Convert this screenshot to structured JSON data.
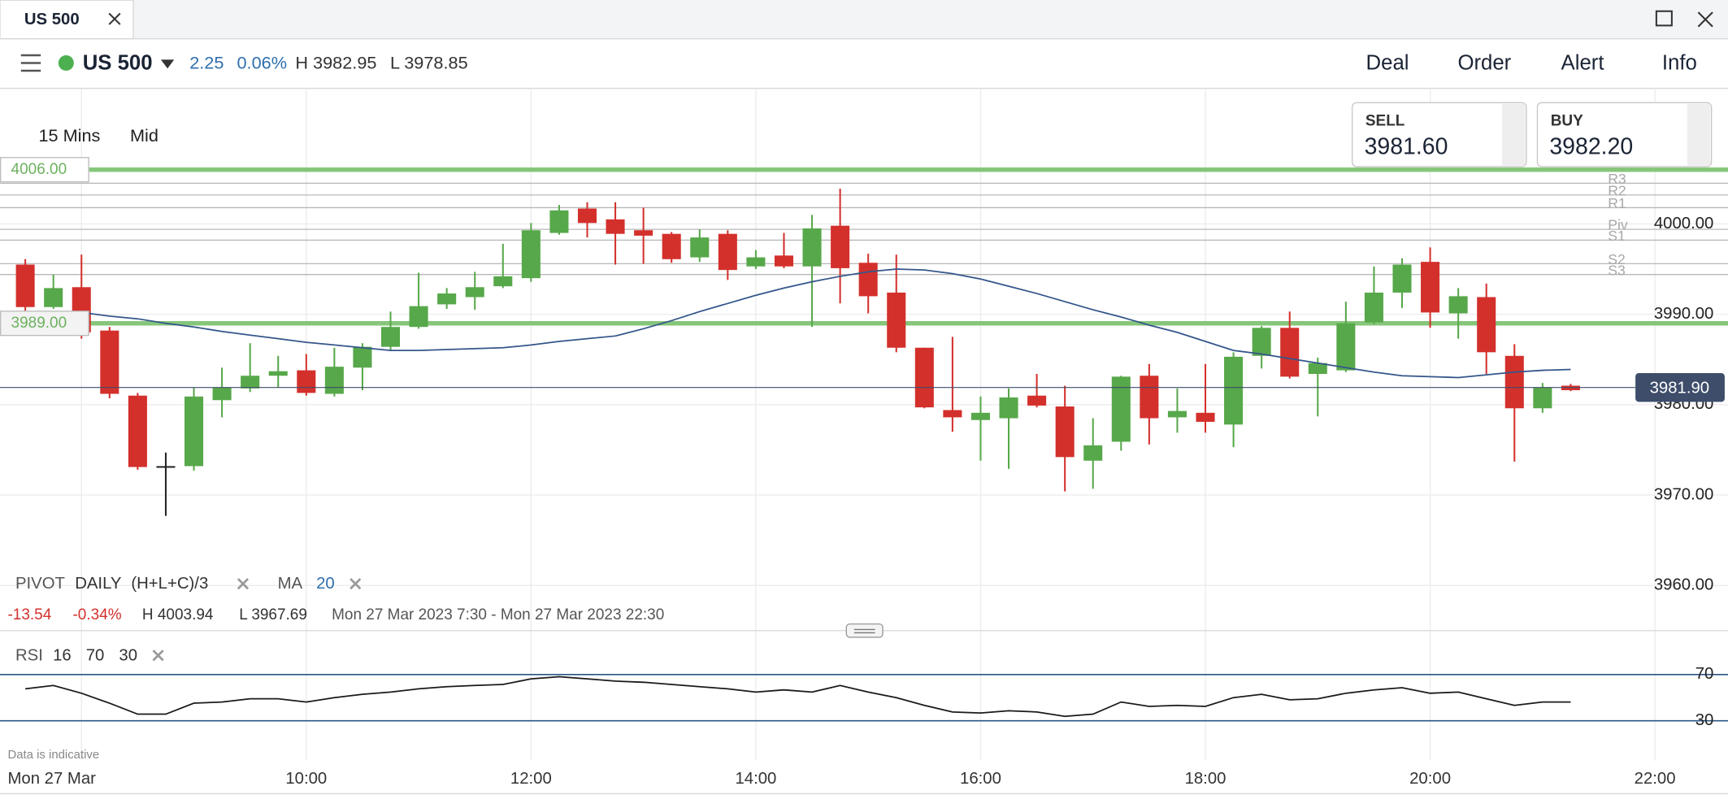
{
  "window": {
    "tab": "US 500"
  },
  "header": {
    "instrument": "US 500",
    "change": "2.25",
    "change_pct": "0.06%",
    "high": "H 3982.95",
    "low": "L 3978.85",
    "menu": [
      "Deal",
      "Order",
      "Alert",
      "Info"
    ]
  },
  "prices": {
    "sell_label": "SELL",
    "sell": "3981.60",
    "buy_label": "BUY",
    "buy": "3982.20"
  },
  "toolbar": {
    "interval": "15 Mins",
    "price_type": "Mid"
  },
  "indicators": {
    "pivot": "PIVOT",
    "pivot_period": "DAILY",
    "pivot_formula": "(H+L+C)/3",
    "ma": "MA",
    "ma_period": "20",
    "rsi": "RSI",
    "rsi_params": [
      "16",
      "70",
      "30"
    ]
  },
  "summary": {
    "change": "-13.54",
    "change_pct": "-0.34%",
    "high": "H 4003.94",
    "low": "L 3967.69",
    "range": "Mon 27 Mar 2023 7:30 - Mon 27 Mar 2023 22:30"
  },
  "footer_note": "Data is indicative",
  "chart_data": [
    {
      "type": "candlestick",
      "x": [
        7.5,
        7.75,
        8,
        8.25,
        8.5,
        8.75,
        9,
        9.25,
        9.5,
        9.75,
        10,
        10.25,
        10.5,
        10.75,
        11,
        11.25,
        11.5,
        11.75,
        12,
        12.25,
        12.5,
        12.75,
        13,
        13.25,
        13.5,
        13.75,
        14,
        14.25,
        14.5,
        14.75,
        15,
        15.25,
        15.5,
        15.75,
        16,
        16.25,
        16.5,
        16.75,
        17,
        17.25,
        17.5,
        17.75,
        18,
        18.25,
        18.5,
        18.75,
        19,
        19.25,
        19.5,
        19.75,
        20,
        20.25,
        20.5,
        20.75,
        21,
        21.25
      ],
      "open": [
        3995.5,
        3990.8,
        3993.0,
        3988.2,
        3981.0,
        3973.2,
        3973.2,
        3980.5,
        3981.8,
        3983.2,
        3983.8,
        3981.2,
        3984.1,
        3986.4,
        3988.6,
        3991.1,
        3991.9,
        3993.1,
        3994.0,
        3999.0,
        4001.7,
        4000.5,
        3999.3,
        3998.9,
        3996.3,
        3998.9,
        3995.3,
        3996.5,
        3995.3,
        3999.8,
        3995.7,
        3992.4,
        3986.3,
        3979.4,
        3978.3,
        3978.5,
        3981.0,
        3979.8,
        3973.8,
        3975.9,
        3983.2,
        3978.6,
        3979.1,
        3977.8,
        3985.4,
        3988.5,
        3983.4,
        3983.8,
        3989.1,
        3992.4,
        3995.8,
        3990.1,
        3991.9,
        3985.4,
        3979.6,
        3982.1
      ],
      "high": [
        3996.1,
        3994.4,
        3996.6,
        3988.6,
        3981.3,
        3974.7,
        3981.9,
        3984.1,
        3986.8,
        3985.4,
        3985.6,
        3986.3,
        3986.8,
        3990.3,
        3994.6,
        3992.9,
        3994.7,
        3997.8,
        4000.1,
        4002.1,
        4002.4,
        4002.4,
        4001.8,
        3999.1,
        3999.4,
        3999.3,
        3997.1,
        3999.0,
        4001.0,
        4003.9,
        3996.7,
        3996.6,
        3986.3,
        3987.5,
        3980.9,
        3981.8,
        3983.4,
        3982.1,
        3978.5,
        3983.2,
        3984.5,
        3981.8,
        3984.5,
        3985.8,
        3988.7,
        3990.3,
        3985.2,
        3991.4,
        3995.3,
        3996.2,
        3997.4,
        3992.9,
        3993.4,
        3986.7,
        3982.4,
        3982.3
      ],
      "low": [
        3990.1,
        3990.6,
        3987.3,
        3980.7,
        3972.8,
        3967.7,
        3972.7,
        3978.6,
        3981.4,
        3981.9,
        3981.0,
        3980.9,
        3981.6,
        3986.0,
        3988.4,
        3990.6,
        3990.5,
        3992.9,
        3993.6,
        3998.8,
        3998.5,
        3995.5,
        3995.6,
        3995.7,
        3995.8,
        3993.8,
        3995.0,
        3995.1,
        3988.6,
        3991.2,
        3990.1,
        3985.8,
        3979.6,
        3977.0,
        3973.8,
        3972.9,
        3979.7,
        3970.4,
        3970.7,
        3974.9,
        3975.6,
        3976.9,
        3976.9,
        3975.3,
        3984.0,
        3982.9,
        3978.7,
        3983.6,
        3988.9,
        3990.7,
        3988.5,
        3987.3,
        3983.4,
        3973.7,
        3979.1,
        3981.5
      ],
      "close": [
        3990.8,
        3992.9,
        3988.0,
        3981.2,
        3973.1,
        3973.2,
        3980.9,
        3981.9,
        3983.2,
        3983.7,
        3981.3,
        3984.2,
        3986.4,
        3988.6,
        3990.9,
        3992.3,
        3993.0,
        3994.2,
        3999.3,
        4001.5,
        4000.1,
        3998.9,
        3998.7,
        3996.1,
        3998.5,
        3994.9,
        3996.3,
        3995.3,
        3999.5,
        3995.1,
        3992.0,
        3986.3,
        3979.7,
        3978.6,
        3979.1,
        3980.8,
        3979.9,
        3974.2,
        3975.5,
        3983.1,
        3978.5,
        3979.3,
        3978.1,
        3985.3,
        3988.5,
        3983.1,
        3984.6,
        3989.0,
        3992.4,
        3995.5,
        3990.2,
        3992.0,
        3985.8,
        3979.6,
        3981.9,
        3981.6
      ],
      "up_color": "#57a84a",
      "down_color": "#d3302c",
      "neutral_color": "#222222",
      "overlay": {
        "color": "#34568b",
        "values": [
          null,
          null,
          3990.2,
          3989.8,
          3989.5,
          3989.0,
          3988.6,
          3988.1,
          3987.7,
          3987.3,
          3986.9,
          3986.6,
          3986.3,
          3986.0,
          3986.0,
          3986.1,
          3986.2,
          3986.3,
          3986.6,
          3987.0,
          3987.3,
          3987.6,
          3988.4,
          3989.3,
          3990.3,
          3991.2,
          3992.1,
          3992.9,
          3993.6,
          3994.2,
          3994.7,
          3995.0,
          3994.9,
          3994.5,
          3993.9,
          3993.1,
          3992.3,
          3991.4,
          3990.5,
          3989.7,
          3988.8,
          3988.0,
          3987.0,
          3986.0,
          3985.6,
          3985.1,
          3984.6,
          3984.1,
          3983.6,
          3983.2,
          3983.1,
          3983.0,
          3983.3,
          3983.6,
          3983.8,
          3983.9
        ]
      },
      "pivots": [
        {
          "value": 4004.5,
          "label": "R3"
        },
        {
          "value": 4003.2,
          "label": "R2"
        },
        {
          "value": 4001.8,
          "label": "R1"
        },
        {
          "value": 3999.4,
          "label": "Piv"
        },
        {
          "value": 3998.2,
          "label": "S1"
        },
        {
          "value": 3995.6,
          "label": "S2"
        },
        {
          "value": 3994.4,
          "label": "S3"
        }
      ],
      "pivot_color": "#b8b8b8",
      "levels": [
        {
          "value": 4006,
          "label": "4006.00"
        },
        {
          "value": 3989,
          "label": "3989.00"
        }
      ],
      "level_color": "#86c67a",
      "current": {
        "value": 3981.9,
        "label": "3981.90",
        "color": "#3d4d6a"
      },
      "xlim": [
        7.275,
        22.65
      ],
      "xticks": [
        {
          "value": 8,
          "label": "Mon 27 Mar"
        },
        {
          "value": 10,
          "label": "10:00"
        },
        {
          "value": 12,
          "label": "12:00"
        },
        {
          "value": 14,
          "label": "14:00"
        },
        {
          "value": 16,
          "label": "16:00"
        },
        {
          "value": 18,
          "label": "18:00"
        },
        {
          "value": 20,
          "label": "20:00"
        },
        {
          "value": 22,
          "label": "22:00"
        }
      ],
      "ylim": [
        3955,
        4015
      ],
      "yticks": [
        {
          "value": 3960,
          "label": "3960.00"
        },
        {
          "value": 3970,
          "label": "3970.00"
        },
        {
          "value": 3980,
          "label": "3980.00"
        },
        {
          "value": 3990,
          "label": "3990.00"
        },
        {
          "value": 4000,
          "label": "4000.00"
        }
      ],
      "grid": true
    },
    {
      "type": "line",
      "x": [
        7.5,
        7.75,
        8,
        8.25,
        8.5,
        8.75,
        9,
        9.25,
        9.5,
        9.75,
        10,
        10.25,
        10.5,
        10.75,
        11,
        11.25,
        11.5,
        11.75,
        12,
        12.25,
        12.5,
        12.75,
        13,
        13.25,
        13.5,
        13.75,
        14,
        14.25,
        14.5,
        14.75,
        15,
        15.25,
        15.5,
        15.75,
        16,
        16.25,
        16.5,
        16.75,
        17,
        17.25,
        17.5,
        17.75,
        18,
        18.25,
        18.5,
        18.75,
        19,
        19.25,
        19.5,
        19.75,
        20,
        20.25,
        20.5,
        20.75,
        21,
        21.25
      ],
      "values": [
        57.6,
        60.5,
        53.8,
        45.2,
        35.7,
        35.7,
        45.2,
        46.2,
        49.0,
        49.0,
        46.2,
        50.0,
        52.9,
        54.8,
        57.6,
        59.5,
        60.5,
        61.4,
        66.2,
        68.1,
        66.2,
        64.3,
        63.3,
        61.4,
        59.5,
        57.6,
        54.8,
        56.7,
        54.8,
        60.5,
        54.8,
        50.0,
        43.3,
        37.6,
        36.7,
        38.6,
        37.6,
        33.8,
        35.7,
        46.2,
        42.4,
        43.3,
        42.4,
        50.0,
        52.9,
        48.1,
        49.0,
        53.8,
        56.7,
        58.6,
        53.8,
        54.8,
        49.0,
        43.3,
        46.2,
        46.2
      ],
      "color": "#1a1a1a",
      "xlim": [
        7.275,
        22.65
      ],
      "ylim": [
        5,
        97.5
      ],
      "yticks": [
        70,
        30
      ],
      "tick_line_color": "#2a5585"
    }
  ]
}
